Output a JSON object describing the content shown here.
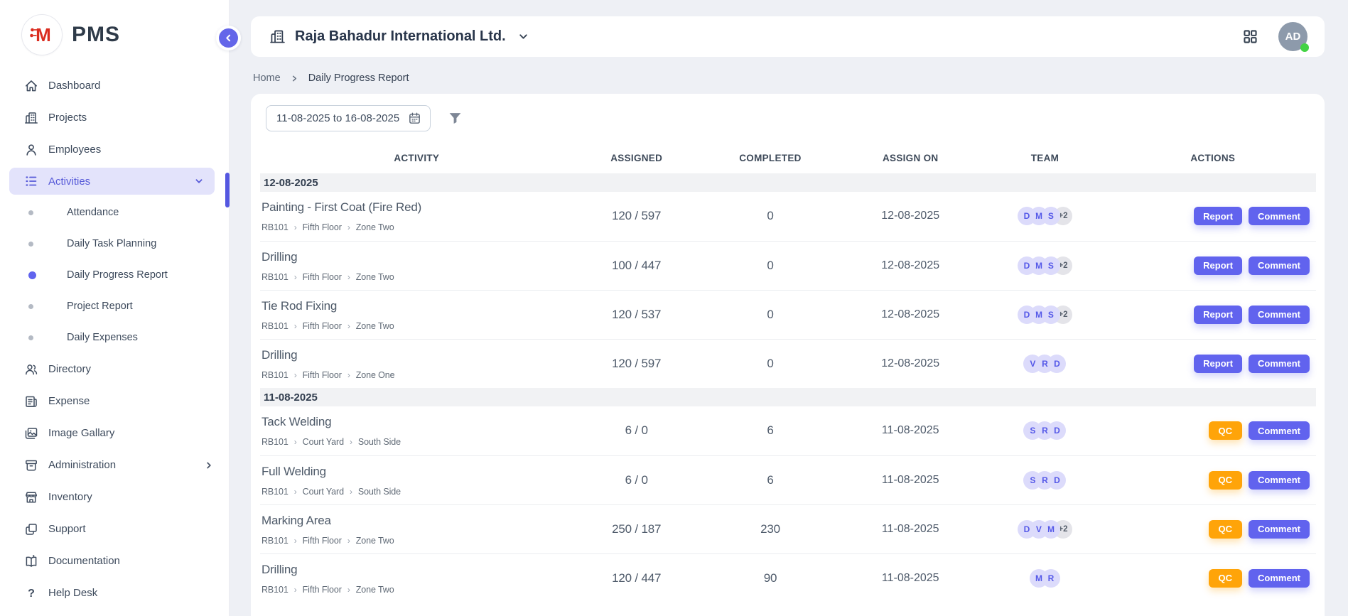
{
  "brand": {
    "logo_letter": "M",
    "app_name": "PMS"
  },
  "header": {
    "company_name": "Raja Bahadur International Ltd.",
    "avatar_initials": "AD",
    "status": "online"
  },
  "sidebar": {
    "items": [
      {
        "label": "Dashboard",
        "icon": "home-icon"
      },
      {
        "label": "Projects",
        "icon": "building-icon"
      },
      {
        "label": "Employees",
        "icon": "user-icon"
      },
      {
        "label": "Activities",
        "icon": "list-icon",
        "active": true,
        "expanded": true,
        "children": [
          {
            "label": "Attendance"
          },
          {
            "label": "Daily Task Planning"
          },
          {
            "label": "Daily Progress Report",
            "active": true
          },
          {
            "label": "Project Report"
          },
          {
            "label": "Daily Expenses"
          }
        ]
      },
      {
        "label": "Directory",
        "icon": "users-icon"
      },
      {
        "label": "Expense",
        "icon": "receipt-icon"
      },
      {
        "label": "Image Gallary",
        "icon": "image-icon"
      },
      {
        "label": "Administration",
        "icon": "archive-icon",
        "has_submenu": true
      },
      {
        "label": "Inventory",
        "icon": "store-icon"
      },
      {
        "label": "Support",
        "icon": "copy-icon"
      },
      {
        "label": "Documentation",
        "icon": "book-icon"
      },
      {
        "label": "Help Desk",
        "icon": "question-icon"
      }
    ]
  },
  "breadcrumb": {
    "items": [
      "Home",
      "Daily Progress Report"
    ]
  },
  "toolbar": {
    "date_range": "11-08-2025 to 16-08-2025"
  },
  "table": {
    "columns": [
      "ACTIVITY",
      "ASSIGNED",
      "COMPLETED",
      "ASSIGN ON",
      "TEAM",
      "ACTIONS"
    ],
    "groups": [
      {
        "date": "12-08-2025",
        "rows": [
          {
            "activity": "Painting - First Coat (Fire Red)",
            "path": [
              "RB101",
              "Fifth Floor",
              "Zone Two"
            ],
            "assigned": "120 / 597",
            "completed": "0",
            "assign_on": "12-08-2025",
            "team": [
              "D",
              "M",
              "S"
            ],
            "team_overflow": "+2",
            "actions": [
              "Report",
              "Comment"
            ]
          },
          {
            "activity": "Drilling",
            "path": [
              "RB101",
              "Fifth Floor",
              "Zone Two"
            ],
            "assigned": "100 / 447",
            "completed": "0",
            "assign_on": "12-08-2025",
            "team": [
              "D",
              "M",
              "S"
            ],
            "team_overflow": "+2",
            "actions": [
              "Report",
              "Comment"
            ]
          },
          {
            "activity": "Tie Rod Fixing",
            "path": [
              "RB101",
              "Fifth Floor",
              "Zone Two"
            ],
            "assigned": "120 / 537",
            "completed": "0",
            "assign_on": "12-08-2025",
            "team": [
              "D",
              "M",
              "S"
            ],
            "team_overflow": "+2",
            "actions": [
              "Report",
              "Comment"
            ]
          },
          {
            "activity": "Drilling",
            "path": [
              "RB101",
              "Fifth Floor",
              "Zone One"
            ],
            "assigned": "120 / 597",
            "completed": "0",
            "assign_on": "12-08-2025",
            "team": [
              "V",
              "R",
              "D"
            ],
            "team_overflow": null,
            "actions": [
              "Report",
              "Comment"
            ]
          }
        ]
      },
      {
        "date": "11-08-2025",
        "rows": [
          {
            "activity": "Tack Welding",
            "path": [
              "RB101",
              "Court Yard",
              "South Side"
            ],
            "assigned": "6 / 0",
            "completed": "6",
            "assign_on": "11-08-2025",
            "team": [
              "S",
              "R",
              "D"
            ],
            "team_overflow": null,
            "actions": [
              "QC",
              "Comment"
            ]
          },
          {
            "activity": "Full Welding",
            "path": [
              "RB101",
              "Court Yard",
              "South Side"
            ],
            "assigned": "6 / 0",
            "completed": "6",
            "assign_on": "11-08-2025",
            "team": [
              "S",
              "R",
              "D"
            ],
            "team_overflow": null,
            "actions": [
              "QC",
              "Comment"
            ]
          },
          {
            "activity": "Marking Area",
            "path": [
              "RB101",
              "Fifth Floor",
              "Zone Two"
            ],
            "assigned": "250 / 187",
            "completed": "230",
            "assign_on": "11-08-2025",
            "team": [
              "D",
              "V",
              "M"
            ],
            "team_overflow": "+2",
            "actions": [
              "QC",
              "Comment"
            ]
          },
          {
            "activity": "Drilling",
            "path": [
              "RB101",
              "Fifth Floor",
              "Zone Two"
            ],
            "assigned": "120 / 447",
            "completed": "90",
            "assign_on": "11-08-2025",
            "team": [
              "M",
              "R"
            ],
            "team_overflow": null,
            "actions": [
              "QC",
              "Comment"
            ]
          }
        ]
      }
    ]
  },
  "colors": {
    "accent_indigo": "#6163ee",
    "qc_orange": "#ffa409",
    "active_item_bg": "#e3e3fb",
    "avatar_chip_bg": "#dcdbfb",
    "brand_red": "#da2c1f",
    "online_green": "#43d344",
    "avatar_bg": "#8d9aab"
  }
}
